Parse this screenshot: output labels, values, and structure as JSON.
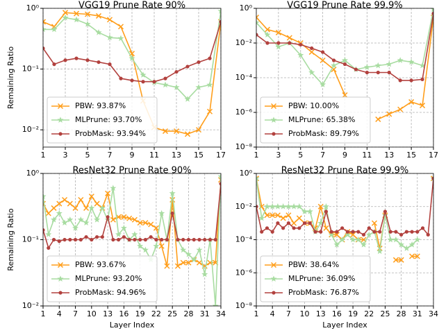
{
  "chart_data": [
    {
      "type": "line",
      "title": "VGG19 Prune Rate 90%",
      "ylabel": "Remaining Ratio",
      "yscale": "log",
      "grid": true,
      "legend": "lower left",
      "x": [
        1,
        2,
        3,
        4,
        5,
        6,
        7,
        8,
        9,
        10,
        11,
        12,
        13,
        14,
        15,
        16,
        17
      ],
      "xlim": [
        1,
        17
      ],
      "xticks": [
        1,
        3,
        5,
        7,
        9,
        11,
        13,
        15,
        17
      ],
      "ylim": [
        0.0052,
        1
      ],
      "yticks": [
        {
          "value": 1,
          "label": "10⁰"
        },
        {
          "value": 0.1,
          "label": "10⁻¹"
        },
        {
          "value": 0.01,
          "label": "10⁻²"
        }
      ],
      "series": [
        {
          "name": "PBW: 93.87%",
          "color": "#ff9e1b",
          "marker": "x",
          "values": [
            0.6,
            0.5,
            0.85,
            0.82,
            0.8,
            0.75,
            0.65,
            0.5,
            0.18,
            0.03,
            0.011,
            0.0095,
            0.0095,
            0.0085,
            0.01,
            0.02,
            0.6
          ]
        },
        {
          "name": "MLPrune: 93.70%",
          "color": "#a8dca1",
          "marker": "star",
          "values": [
            0.45,
            0.45,
            0.7,
            0.65,
            0.55,
            0.4,
            0.33,
            0.32,
            0.15,
            0.08,
            0.06,
            0.055,
            0.05,
            0.032,
            0.05,
            0.055,
            0.9
          ]
        },
        {
          "name": "ProbMask: 93.94%",
          "color": "#b2413e",
          "marker": "o",
          "values": [
            0.22,
            0.12,
            0.14,
            0.15,
            0.14,
            0.13,
            0.12,
            0.07,
            0.065,
            0.062,
            0.062,
            0.07,
            0.09,
            0.11,
            0.13,
            0.15,
            0.6
          ]
        }
      ]
    },
    {
      "type": "line",
      "title": "VGG19 Prune Rate 99.9%",
      "yscale": "log",
      "grid": true,
      "legend": "lower left",
      "x": [
        1,
        2,
        3,
        4,
        5,
        6,
        7,
        8,
        9,
        10,
        11,
        12,
        13,
        14,
        15,
        16,
        17
      ],
      "xlim": [
        1,
        17
      ],
      "xticks": [
        1,
        3,
        5,
        7,
        9,
        11,
        13,
        15,
        17
      ],
      "ylim": [
        1e-08,
        1
      ],
      "yticks": [
        {
          "value": 1,
          "label": "10⁰"
        },
        {
          "value": 0.01,
          "label": "10⁻²"
        },
        {
          "value": 0.0001,
          "label": "10⁻⁴"
        },
        {
          "value": 1e-06,
          "label": "10⁻⁶"
        },
        {
          "value": 1e-08,
          "label": "10⁻⁸"
        }
      ],
      "series": [
        {
          "name": "PBW: 10.00%",
          "color": "#ff9e1b",
          "marker": "x",
          "values": [
            0.3,
            0.06,
            0.04,
            0.02,
            0.01,
            0.003,
            0.001,
            0.0003,
            1e-05,
            null,
            null,
            4e-07,
            8e-07,
            1.5e-06,
            4e-06,
            2.5e-06,
            0.3
          ]
        },
        {
          "name": "MLPrune: 65.38%",
          "color": "#a8dca1",
          "marker": "star",
          "values": [
            0.15,
            0.03,
            0.006,
            0.01,
            0.002,
            0.0002,
            4e-05,
            0.0005,
            0.001,
            0.0003,
            0.0004,
            0.0005,
            0.0006,
            0.001,
            0.0008,
            0.0005,
            0.9
          ]
        },
        {
          "name": "ProbMask: 89.79%",
          "color": "#b2413e",
          "marker": "o",
          "values": [
            0.03,
            0.01,
            0.01,
            0.01,
            0.008,
            0.005,
            0.003,
            0.001,
            0.0006,
            0.0003,
            0.0002,
            0.0002,
            0.0002,
            7e-05,
            7e-05,
            8e-05,
            0.5
          ]
        }
      ]
    },
    {
      "type": "line",
      "title": "ResNet32 Prune Rate 90%",
      "xlabel": "Layer Index",
      "ylabel": "Remaining Ratio",
      "yscale": "log",
      "grid": true,
      "legend": "lower left",
      "x": [
        1,
        2,
        3,
        4,
        5,
        6,
        7,
        8,
        9,
        10,
        11,
        12,
        13,
        14,
        15,
        16,
        17,
        18,
        19,
        20,
        21,
        22,
        23,
        24,
        25,
        26,
        27,
        28,
        29,
        30,
        31,
        32,
        33,
        34
      ],
      "xlim": [
        1,
        34
      ],
      "xticks": [
        1,
        4,
        7,
        10,
        13,
        16,
        19,
        22,
        25,
        28,
        31,
        34
      ],
      "ylim": [
        0.01,
        1
      ],
      "yticks": [
        {
          "value": 1,
          "label": "10⁰"
        },
        {
          "value": 0.1,
          "label": "10⁻¹"
        },
        {
          "value": 0.01,
          "label": "10⁻²"
        }
      ],
      "series": [
        {
          "name": "PBW: 93.67%",
          "color": "#ff9e1b",
          "marker": "x",
          "values": [
            0.35,
            0.25,
            0.3,
            0.35,
            0.4,
            0.35,
            0.3,
            0.4,
            0.3,
            0.45,
            0.35,
            0.3,
            0.5,
            0.2,
            0.22,
            0.22,
            0.21,
            0.2,
            0.18,
            0.18,
            0.17,
            0.15,
            0.08,
            0.04,
            0.4,
            0.04,
            0.045,
            0.045,
            0.05,
            0.045,
            0.04,
            0.045,
            0.045,
            0.8
          ]
        },
        {
          "name": "MLPrune: 93.20%",
          "color": "#a8dca1",
          "marker": "star",
          "values": [
            0.45,
            0.12,
            0.2,
            0.25,
            0.18,
            0.2,
            0.15,
            0.2,
            0.18,
            0.3,
            0.2,
            0.3,
            0.2,
            0.6,
            0.12,
            0.15,
            0.1,
            0.12,
            0.08,
            0.07,
            0.05,
            0.08,
            0.25,
            0.1,
            0.5,
            0.1,
            0.07,
            0.06,
            0.05,
            0.07,
            0.03,
            0.1,
            0.01,
            0.9
          ]
        },
        {
          "name": "ProbMask: 94.96%",
          "color": "#b2413e",
          "marker": "o",
          "values": [
            0.14,
            0.075,
            0.1,
            0.095,
            0.1,
            0.1,
            0.1,
            0.1,
            0.11,
            0.1,
            0.11,
            0.11,
            0.22,
            0.1,
            0.1,
            0.11,
            0.1,
            0.1,
            0.1,
            0.1,
            0.11,
            0.1,
            0.1,
            0.1,
            0.25,
            0.1,
            0.1,
            0.1,
            0.1,
            0.1,
            0.1,
            0.1,
            0.1,
            0.7
          ]
        }
      ]
    },
    {
      "type": "line",
      "title": "ResNet32 Prune Rate 99.9%",
      "xlabel": "Layer Index",
      "yscale": "log",
      "grid": true,
      "legend": "lower left",
      "x": [
        1,
        2,
        3,
        4,
        5,
        6,
        7,
        8,
        9,
        10,
        11,
        12,
        13,
        14,
        15,
        16,
        17,
        18,
        19,
        20,
        21,
        22,
        23,
        24,
        25,
        26,
        27,
        28,
        29,
        30,
        31,
        32,
        33,
        34
      ],
      "xlim": [
        1,
        34
      ],
      "xticks": [
        1,
        4,
        7,
        10,
        13,
        16,
        19,
        22,
        25,
        28,
        31,
        34
      ],
      "ylim": [
        1e-08,
        1
      ],
      "yticks": [
        {
          "value": 1,
          "label": "10⁰"
        },
        {
          "value": 0.01,
          "label": "10⁻²"
        },
        {
          "value": 0.0001,
          "label": "10⁻⁴"
        },
        {
          "value": 1e-06,
          "label": "10⁻⁶"
        },
        {
          "value": 1e-08,
          "label": "10⁻⁸"
        }
      ],
      "series": [
        {
          "name": "PBW: 38.64%",
          "color": "#ff9e1b",
          "marker": "x",
          "values": [
            0.5,
            0.01,
            0.003,
            0.003,
            0.003,
            0.002,
            0.003,
            0.001,
            0.002,
            0.001,
            0.001,
            0.0005,
            0.01,
            0.0005,
            0.0002,
            0.0002,
            0.0001,
            0.0003,
            0.0002,
            0.0001,
            0.0001,
            null,
            0.001,
            3e-05,
            0.003,
            null,
            6e-06,
            6e-06,
            null,
            1e-05,
            1e-05,
            null,
            null,
            0.5
          ]
        },
        {
          "name": "MLPrune: 36.09%",
          "color": "#a8dca1",
          "marker": "star",
          "values": [
            0.5,
            0.002,
            0.01,
            0.01,
            0.01,
            0.01,
            0.01,
            0.01,
            0.01,
            0.005,
            0.005,
            0.0003,
            0.001,
            0.01,
            0.0002,
            5e-05,
            0.0001,
            0.0002,
            0.0001,
            0.0001,
            5e-05,
            0.0002,
            0.0003,
            2e-05,
            0.003,
            0.0001,
            0.0001,
            5e-05,
            3e-05,
            5e-05,
            0.0001,
            null,
            null,
            0.5
          ]
        },
        {
          "name": "ProbMask: 76.87%",
          "color": "#b2413e",
          "marker": "o",
          "values": [
            0.01,
            0.0003,
            0.0005,
            0.0003,
            0.001,
            0.0005,
            0.001,
            0.0005,
            0.0005,
            0.001,
            0.001,
            0.0003,
            0.0003,
            0.005,
            0.0003,
            0.0003,
            0.0005,
            0.0003,
            0.0003,
            0.0003,
            0.0002,
            0.0005,
            0.0003,
            0.0003,
            0.005,
            0.0003,
            0.0003,
            0.0002,
            0.0003,
            0.0003,
            0.0003,
            0.0005,
            0.0002,
            0.5
          ]
        }
      ]
    }
  ]
}
